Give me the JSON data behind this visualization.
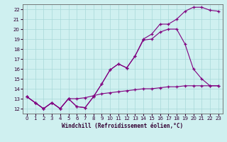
{
  "xlabel": "Windchill (Refroidissement éolien,°C)",
  "bg_color": "#cff0f0",
  "line_color": "#800080",
  "grid_color": "#a8d8d8",
  "x_ticks": [
    0,
    1,
    2,
    3,
    4,
    5,
    6,
    7,
    8,
    9,
    10,
    11,
    12,
    13,
    14,
    15,
    16,
    17,
    18,
    19,
    20,
    21,
    22,
    23
  ],
  "y_ticks": [
    12,
    13,
    14,
    15,
    16,
    17,
    18,
    19,
    20,
    21,
    22
  ],
  "xlim": [
    -0.5,
    23.5
  ],
  "ylim": [
    11.5,
    22.5
  ],
  "series": [
    {
      "x": [
        0,
        1,
        2,
        3,
        4,
        5,
        6,
        7,
        8,
        9,
        10,
        11,
        12,
        13,
        14,
        15,
        16,
        17,
        18,
        19,
        20,
        21,
        22,
        23
      ],
      "y": [
        13.2,
        12.6,
        12.0,
        12.6,
        12.0,
        13.0,
        12.2,
        12.1,
        13.2,
        14.5,
        15.9,
        16.5,
        16.1,
        17.3,
        19.0,
        19.5,
        20.5,
        20.5,
        21.0,
        21.8,
        22.2,
        22.2,
        21.9,
        21.8
      ]
    },
    {
      "x": [
        0,
        1,
        2,
        3,
        4,
        5,
        6,
        7,
        8,
        9,
        10,
        11,
        12,
        13,
        14,
        15,
        16,
        17,
        18,
        19,
        20,
        21,
        22,
        23
      ],
      "y": [
        13.2,
        12.6,
        12.0,
        12.6,
        12.0,
        13.0,
        12.2,
        12.1,
        13.2,
        14.5,
        15.9,
        16.5,
        16.1,
        17.3,
        18.9,
        19.0,
        19.7,
        20.0,
        20.0,
        18.5,
        16.0,
        15.0,
        14.3,
        14.3
      ]
    },
    {
      "x": [
        0,
        1,
        2,
        3,
        4,
        5,
        6,
        7,
        8,
        9,
        10,
        11,
        12,
        13,
        14,
        15,
        16,
        17,
        18,
        19,
        20,
        21,
        22,
        23
      ],
      "y": [
        13.2,
        12.6,
        12.0,
        12.6,
        12.0,
        13.0,
        13.0,
        13.1,
        13.3,
        13.5,
        13.6,
        13.7,
        13.8,
        13.9,
        14.0,
        14.0,
        14.1,
        14.2,
        14.2,
        14.3,
        14.3,
        14.3,
        14.3,
        14.3
      ]
    }
  ]
}
